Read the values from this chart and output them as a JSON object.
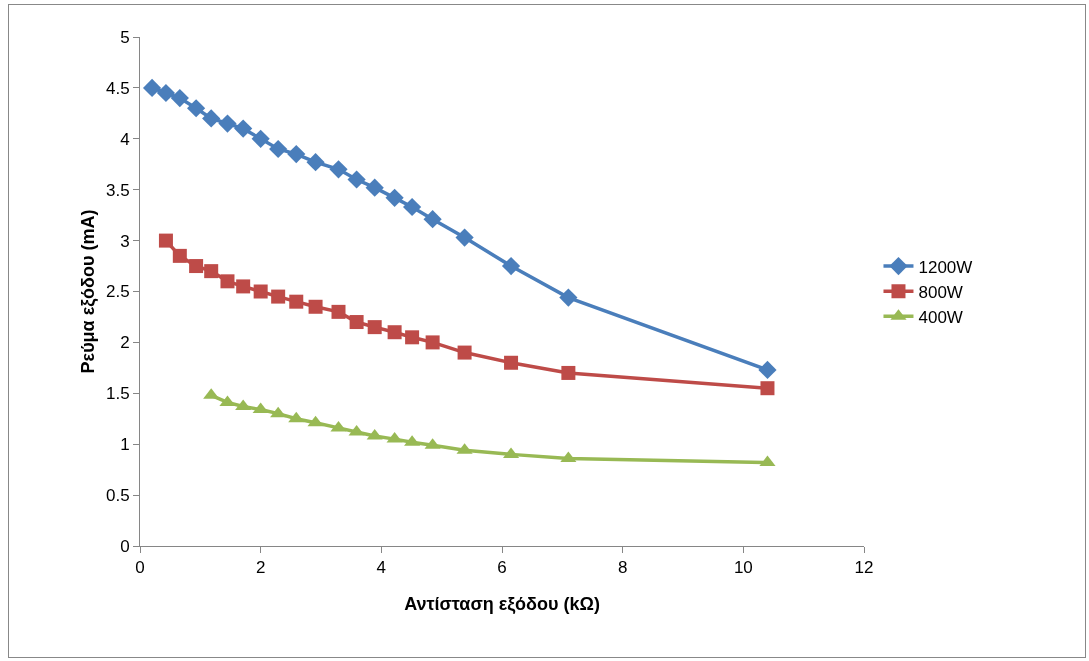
{
  "chart_data": {
    "type": "line",
    "xlabel": "Αντίσταση εξόδου (kΩ)",
    "ylabel": "Ρεύμα εξόδου (mA)",
    "xlim": [
      0,
      12
    ],
    "xticks": [
      0,
      2,
      4,
      6,
      8,
      10,
      12
    ],
    "ylim": [
      0,
      5
    ],
    "yticks": [
      0,
      0.5,
      1,
      1.5,
      2,
      2.5,
      3,
      3.5,
      4,
      4.5,
      5
    ],
    "grid": false,
    "legend": "right",
    "line_style": "solid",
    "series": [
      {
        "name": "1200W",
        "color": "#4a7ebb",
        "marker": "diamond",
        "x": [
          0.2,
          0.43,
          0.66,
          0.93,
          1.18,
          1.45,
          1.71,
          2.0,
          2.29,
          2.59,
          2.91,
          3.29,
          3.59,
          3.89,
          4.22,
          4.51,
          4.85,
          5.38,
          6.15,
          7.1,
          10.4
        ],
        "values": [
          4.5,
          4.45,
          4.4,
          4.3,
          4.2,
          4.15,
          4.1,
          4.0,
          3.9,
          3.85,
          3.77,
          3.7,
          3.6,
          3.52,
          3.42,
          3.33,
          3.21,
          3.03,
          2.75,
          2.44,
          1.73
        ]
      },
      {
        "name": "800W",
        "color": "#be4b48",
        "marker": "square",
        "x": [
          0.43,
          0.66,
          0.93,
          1.18,
          1.45,
          1.71,
          2.0,
          2.29,
          2.59,
          2.91,
          3.29,
          3.59,
          3.89,
          4.22,
          4.51,
          4.85,
          5.38,
          6.15,
          7.1,
          10.4
        ],
        "values": [
          3.0,
          2.85,
          2.75,
          2.7,
          2.6,
          2.55,
          2.5,
          2.45,
          2.4,
          2.35,
          2.3,
          2.2,
          2.15,
          2.1,
          2.05,
          2.0,
          1.9,
          1.8,
          1.7,
          1.55
        ]
      },
      {
        "name": "400W",
        "color": "#98b954",
        "marker": "triangle",
        "x": [
          1.18,
          1.45,
          1.71,
          2.0,
          2.29,
          2.59,
          2.91,
          3.29,
          3.59,
          3.89,
          4.22,
          4.51,
          4.85,
          5.38,
          6.15,
          7.1,
          10.4
        ],
        "values": [
          1.48,
          1.41,
          1.37,
          1.34,
          1.3,
          1.25,
          1.21,
          1.16,
          1.12,
          1.08,
          1.05,
          1.02,
          0.99,
          0.94,
          0.9,
          0.86,
          0.82
        ]
      }
    ]
  }
}
